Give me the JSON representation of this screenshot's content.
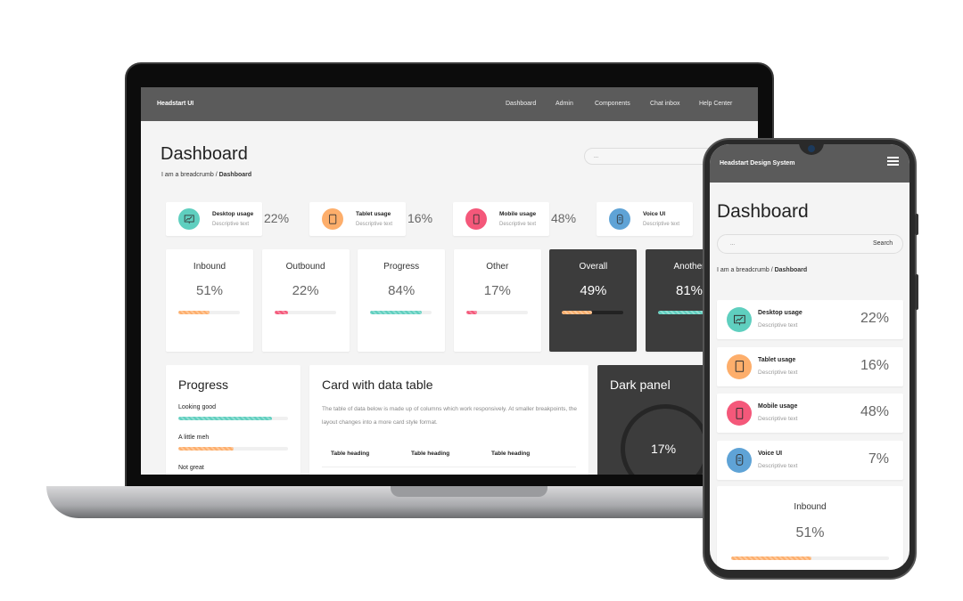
{
  "colors": {
    "teal": "#5fcfbf",
    "orange": "#fdae6b",
    "pink": "#f4587a",
    "blue": "#5fa3d6",
    "nav": "#5b5b5b",
    "dark_card": "#3c3c3c"
  },
  "desktop": {
    "nav": {
      "brand": "Headstart UI",
      "items": [
        "Dashboard",
        "Admin",
        "Components",
        "Chat inbox",
        "Help Center"
      ]
    },
    "title": "Dashboard",
    "breadcrumb": {
      "prefix": "I am a breadcrumb / ",
      "current": "Dashboard"
    },
    "search": {
      "placeholder": "..."
    },
    "stats": [
      {
        "title": "Desktop usage",
        "desc": "Descriptive text",
        "value": "22%",
        "icon": "desktop-chart-icon",
        "color": "#5fcfbf"
      },
      {
        "title": "Tablet usage",
        "desc": "Descriptive text",
        "value": "16%",
        "icon": "tablet-icon",
        "color": "#fdae6b"
      },
      {
        "title": "Mobile usage",
        "desc": "Descriptive text",
        "value": "48%",
        "icon": "mobile-icon",
        "color": "#f4587a"
      },
      {
        "title": "Voice UI",
        "desc": "Descriptive text",
        "value": "",
        "icon": "voice-device-icon",
        "color": "#5fa3d6"
      }
    ],
    "metrics": [
      {
        "label": "Inbound",
        "value": "51%",
        "progress": 51,
        "color": "#fdae6b",
        "dark": false
      },
      {
        "label": "Outbound",
        "value": "22%",
        "progress": 22,
        "color": "#f4587a",
        "dark": false
      },
      {
        "label": "Progress",
        "value": "84%",
        "progress": 84,
        "color": "#5fcfbf",
        "dark": false
      },
      {
        "label": "Other",
        "value": "17%",
        "progress": 17,
        "color": "#f4587a",
        "dark": false
      },
      {
        "label": "Overall",
        "value": "49%",
        "progress": 49,
        "color": "#fdae6b",
        "dark": true
      },
      {
        "label": "Another",
        "value": "81%",
        "progress": 81,
        "color": "#5fcfbf",
        "dark": true
      }
    ],
    "progress_card": {
      "title": "Progress",
      "items": [
        {
          "label": "Looking good",
          "progress": 85,
          "color": "#5fcfbf"
        },
        {
          "label": "A little meh",
          "progress": 50,
          "color": "#fdae6b"
        },
        {
          "label": "Not great",
          "progress": 20,
          "color": "#f4587a"
        }
      ]
    },
    "table_card": {
      "title": "Card with data table",
      "desc": "The table of data below is made up of columns which work responsively. At smaller breakpoints, the layout changes into a more card style format.",
      "headings": [
        "Table heading",
        "Table heading",
        "Table heading"
      ]
    },
    "dark_panel": {
      "title": "Dark panel",
      "value": "17%",
      "progress": 17
    }
  },
  "mobile": {
    "nav": {
      "brand": "Headstart Design System",
      "menu_icon": "hamburger-icon"
    },
    "title": "Dashboard",
    "search": {
      "placeholder": "...",
      "button": "Search"
    },
    "breadcrumb": {
      "prefix": "I am a breadcrumb / ",
      "current": "Dashboard"
    },
    "stats": [
      {
        "title": "Desktop usage",
        "desc": "Descriptive text",
        "value": "22%",
        "color": "#5fcfbf"
      },
      {
        "title": "Tablet usage",
        "desc": "Descriptive text",
        "value": "16%",
        "color": "#fdae6b"
      },
      {
        "title": "Mobile usage",
        "desc": "Descriptive text",
        "value": "48%",
        "color": "#f4587a"
      },
      {
        "title": "Voice UI",
        "desc": "Descriptive text",
        "value": "7%",
        "color": "#5fa3d6"
      }
    ],
    "metric": {
      "label": "Inbound",
      "value": "51%",
      "progress": 51,
      "color": "#fdae6b"
    }
  }
}
